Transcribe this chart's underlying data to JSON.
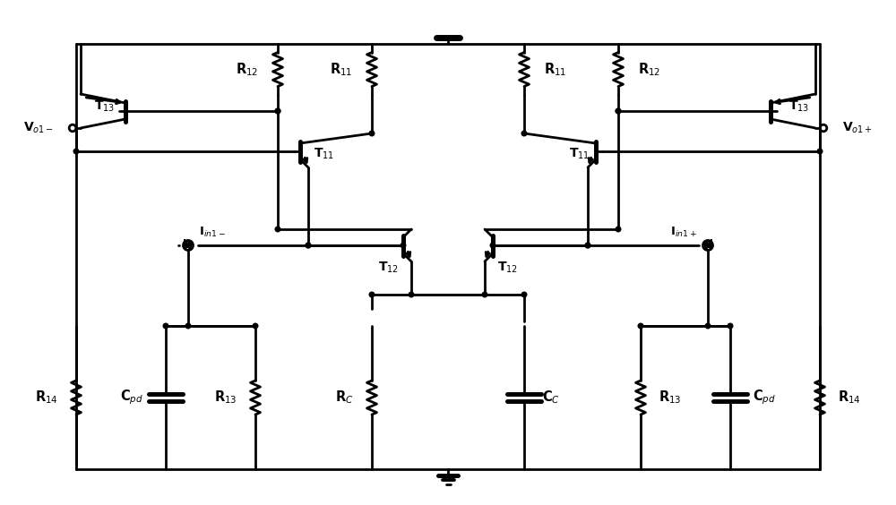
{
  "bg": "#ffffff",
  "lc": "#000000",
  "lw": 2.0,
  "fig_w": 10.0,
  "fig_h": 5.64,
  "dpi": 100,
  "labels": {
    "R12": "R$_{12}$",
    "R11": "R$_{11}$",
    "R13": "R$_{13}$",
    "R14": "R$_{14}$",
    "RC": "R$_C$",
    "CC": "C$_C$",
    "Cpd": "C$_{pd}$",
    "T11": "T$_{11}$",
    "T12": "T$_{12}$",
    "T13": "T$_{13}$",
    "Vo1m": "V$_{o1-}$",
    "Vo1p": "V$_{o1+}$",
    "Iin1m": "I$_{in1-}$",
    "Iin1p": "I$_{in1+}$"
  }
}
